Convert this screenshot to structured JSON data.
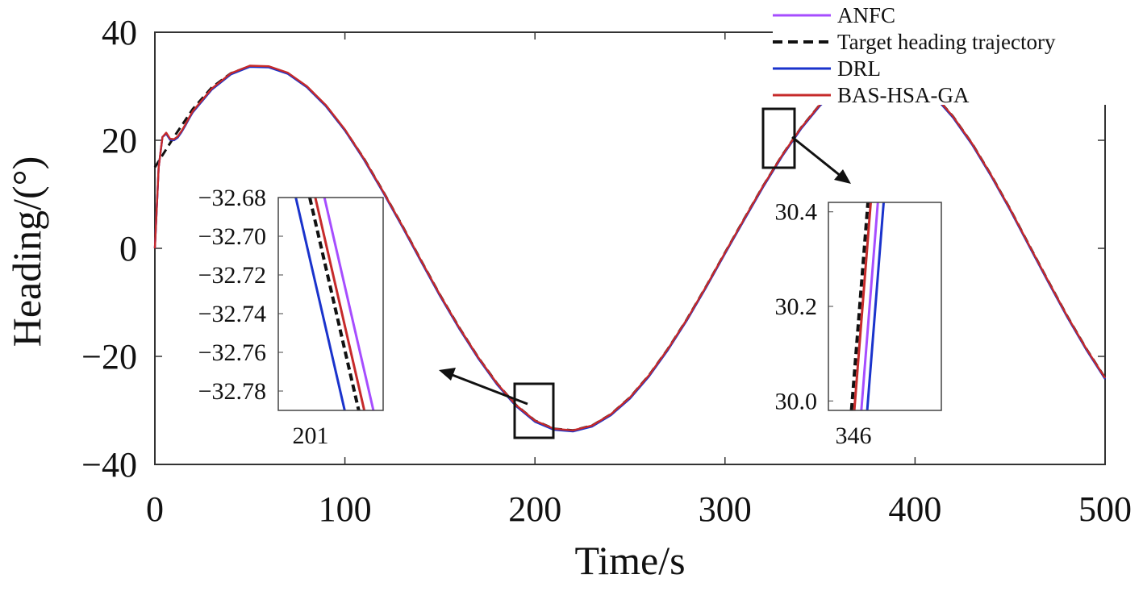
{
  "chart_data": {
    "type": "line",
    "xlabel": "Time/s",
    "ylabel": "Heading/(°)",
    "xlim": [
      0,
      500
    ],
    "ylim": [
      -40,
      40
    ],
    "xticks": [
      "0",
      "100",
      "200",
      "300",
      "400",
      "500"
    ],
    "yticks": [
      "40",
      "20",
      "0",
      "−20",
      "−40"
    ],
    "legend_position": "top-right",
    "colors": {
      "ANFC": "#a64dff",
      "Target heading trajectory": "#111111",
      "DRL": "#1a33cc",
      "BAS-HSA-GA": "#c62a2a"
    },
    "legend": [
      "ANFC",
      "Target heading trajectory",
      "DRL",
      "BAS-HSA-GA"
    ],
    "series": [
      {
        "name": "Target heading trajectory",
        "x": [
          0,
          10,
          20,
          30,
          40,
          50,
          60,
          70,
          80,
          90,
          100,
          110,
          120,
          130,
          140,
          150,
          160,
          170,
          180,
          190,
          200,
          210,
          220,
          230,
          240,
          250,
          260,
          270,
          280,
          290,
          300,
          310,
          320,
          330,
          340,
          350,
          360,
          370,
          380,
          390,
          400,
          410,
          420,
          430,
          440,
          450,
          460,
          470,
          480,
          490,
          500
        ],
        "values": [
          15,
          20.6,
          25.8,
          29.8,
          32.4,
          33.7,
          33.6,
          32.4,
          29.9,
          26.4,
          21.9,
          16.6,
          10.6,
          4.3,
          -2.2,
          -8.6,
          -14.6,
          -20.1,
          -25.0,
          -29.0,
          -31.9,
          -33.4,
          -33.7,
          -32.8,
          -30.7,
          -27.6,
          -23.5,
          -18.6,
          -13.1,
          -7.1,
          -0.8,
          5.4,
          11.5,
          17.2,
          22.3,
          26.6,
          29.9,
          32.1,
          33.1,
          32.8,
          31.2,
          28.4,
          24.4,
          19.4,
          13.6,
          7.3,
          0.6,
          -6.0,
          -12.5,
          -18.5,
          -24.0
        ]
      },
      {
        "name": "ANFC",
        "x": [
          0,
          2,
          4,
          6,
          8,
          10,
          12,
          14,
          16,
          18,
          20,
          30,
          40,
          50,
          60,
          70,
          80,
          90,
          100,
          110,
          120,
          130,
          140,
          150,
          160,
          170,
          180,
          190,
          200,
          210,
          220,
          230,
          240,
          250,
          260,
          270,
          280,
          290,
          300,
          310,
          320,
          330,
          340,
          350,
          360,
          370,
          380,
          390,
          400,
          410,
          420,
          430,
          440,
          450,
          460,
          470,
          480,
          490,
          500
        ],
        "values": [
          0,
          15.0,
          20.6,
          21.3,
          20.2,
          20.1,
          20.6,
          21.6,
          22.8,
          24.1,
          25.3,
          29.5,
          32.3,
          33.7,
          33.6,
          32.4,
          29.9,
          26.4,
          21.9,
          16.5,
          10.5,
          4.2,
          -2.3,
          -8.7,
          -14.7,
          -20.2,
          -25.1,
          -29.1,
          -32.0,
          -33.5,
          -33.8,
          -32.9,
          -30.8,
          -27.7,
          -23.6,
          -18.7,
          -13.2,
          -7.2,
          -0.9,
          5.3,
          11.4,
          17.1,
          22.2,
          26.5,
          29.8,
          32.0,
          33.0,
          32.7,
          31.1,
          28.3,
          24.3,
          19.3,
          13.5,
          7.2,
          0.5,
          -6.1,
          -12.6,
          -18.6,
          -24.1
        ]
      },
      {
        "name": "DRL",
        "x": [
          0,
          2,
          4,
          6,
          8,
          10,
          12,
          14,
          16,
          18,
          20,
          30,
          40,
          50,
          60,
          70,
          80,
          90,
          100,
          110,
          120,
          130,
          140,
          150,
          160,
          170,
          180,
          190,
          200,
          210,
          220,
          230,
          240,
          250,
          260,
          270,
          280,
          290,
          300,
          310,
          320,
          330,
          340,
          350,
          360,
          370,
          380,
          390,
          400,
          410,
          420,
          430,
          440,
          450,
          460,
          470,
          480,
          490,
          500
        ],
        "values": [
          0,
          15.0,
          20.6,
          21.2,
          20.1,
          20.0,
          20.5,
          21.5,
          22.7,
          24.0,
          25.2,
          29.4,
          32.2,
          33.6,
          33.5,
          32.3,
          29.8,
          26.3,
          21.8,
          16.4,
          10.4,
          4.1,
          -2.4,
          -8.8,
          -14.8,
          -20.3,
          -25.2,
          -29.2,
          -32.1,
          -33.6,
          -33.9,
          -33.0,
          -30.9,
          -27.8,
          -23.7,
          -18.8,
          -13.3,
          -7.3,
          -1.0,
          5.2,
          11.3,
          17.0,
          22.1,
          26.4,
          29.7,
          31.9,
          32.9,
          32.6,
          31.0,
          28.2,
          24.2,
          19.2,
          13.4,
          7.1,
          0.4,
          -6.2,
          -12.7,
          -18.7,
          -24.2
        ]
      },
      {
        "name": "BAS-HSA-GA",
        "x": [
          0,
          2,
          4,
          6,
          8,
          10,
          12,
          14,
          16,
          18,
          20,
          30,
          40,
          50,
          60,
          70,
          80,
          90,
          100,
          110,
          120,
          130,
          140,
          150,
          160,
          170,
          180,
          190,
          200,
          210,
          220,
          230,
          240,
          250,
          260,
          270,
          280,
          290,
          300,
          310,
          320,
          330,
          340,
          350,
          360,
          370,
          380,
          390,
          400,
          410,
          420,
          430,
          440,
          450,
          460,
          470,
          480,
          490,
          500
        ],
        "values": [
          0,
          15.0,
          20.6,
          21.4,
          20.3,
          20.2,
          20.7,
          21.7,
          22.9,
          24.2,
          25.4,
          29.6,
          32.4,
          33.8,
          33.7,
          32.5,
          30.0,
          26.5,
          22.0,
          16.6,
          10.6,
          4.3,
          -2.2,
          -8.6,
          -14.6,
          -20.1,
          -25.0,
          -29.0,
          -31.9,
          -33.4,
          -33.7,
          -32.8,
          -30.7,
          -27.6,
          -23.5,
          -18.6,
          -13.1,
          -7.1,
          -0.8,
          5.4,
          11.5,
          17.2,
          22.3,
          26.6,
          29.9,
          32.1,
          33.1,
          32.8,
          31.2,
          28.4,
          24.4,
          19.4,
          13.6,
          7.3,
          0.6,
          -6.0,
          -12.5,
          -18.5,
          -24.0
        ]
      }
    ],
    "insets": [
      {
        "id": "left",
        "xtick": "201",
        "yticks": [
          "−32.68",
          "−32.70",
          "−32.72",
          "−32.74",
          "−32.76",
          "−32.78"
        ],
        "ylim": [
          -32.79,
          -32.68
        ],
        "xlim": [
          200.94,
          201.09
        ],
        "lines": [
          {
            "name": "DRL",
            "x": [
              200.965,
              201.035
            ],
            "y": [
              -32.68,
              -32.79
            ]
          },
          {
            "name": "Target heading trajectory",
            "x": [
              200.985,
              201.055
            ],
            "y": [
              -32.68,
              -32.79
            ]
          },
          {
            "name": "BAS-HSA-GA",
            "x": [
              200.993,
              201.063
            ],
            "y": [
              -32.68,
              -32.79
            ]
          },
          {
            "name": "ANFC",
            "x": [
              201.006,
              201.076
            ],
            "y": [
              -32.68,
              -32.79
            ]
          }
        ]
      },
      {
        "id": "right",
        "xtick": "346",
        "yticks": [
          "30.4",
          "30.2",
          "30.0"
        ],
        "ylim": [
          29.98,
          30.42
        ],
        "xlim": [
          345.9,
          346.38
        ],
        "lines": [
          {
            "name": "Target heading trajectory",
            "x": [
              345.998,
              346.068
            ],
            "y": [
              29.98,
              30.42
            ]
          },
          {
            "name": "BAS-HSA-GA",
            "x": [
              346.01,
              346.08
            ],
            "y": [
              29.98,
              30.42
            ]
          },
          {
            "name": "ANFC",
            "x": [
              346.04,
              346.11
            ],
            "y": [
              29.98,
              30.42
            ]
          },
          {
            "name": "DRL",
            "x": [
              346.065,
              346.135
            ],
            "y": [
              29.98,
              30.42
            ]
          }
        ]
      }
    ]
  }
}
